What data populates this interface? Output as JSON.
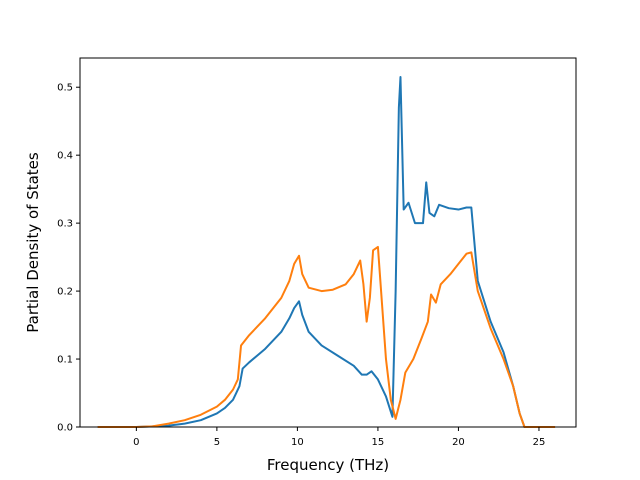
{
  "chart_data": {
    "type": "line",
    "title": "",
    "xlabel": "Frequency (THz)",
    "ylabel": "Partial Density of States",
    "xlim": [
      -3.5,
      27.3
    ],
    "ylim": [
      0.0,
      0.543
    ],
    "xticks": [
      0,
      5,
      10,
      15,
      20,
      25
    ],
    "yticks": [
      0.0,
      0.1,
      0.2,
      0.3,
      0.4,
      0.5
    ],
    "xtick_labels": [
      "0",
      "5",
      "10",
      "15",
      "20",
      "25"
    ],
    "ytick_labels": [
      "0.0",
      "0.1",
      "0.2",
      "0.3",
      "0.4",
      "0.5"
    ],
    "grid": false,
    "legend": "none",
    "series": [
      {
        "color": "#1f77b4",
        "points": [
          [
            -2.4,
            0.0
          ],
          [
            0.0,
            0.0
          ],
          [
            1.0,
            0.001
          ],
          [
            2.0,
            0.002
          ],
          [
            3.0,
            0.005
          ],
          [
            4.0,
            0.01
          ],
          [
            5.0,
            0.02
          ],
          [
            5.5,
            0.028
          ],
          [
            6.0,
            0.04
          ],
          [
            6.2,
            0.05
          ],
          [
            6.4,
            0.06
          ],
          [
            6.6,
            0.086
          ],
          [
            7.0,
            0.095
          ],
          [
            8.0,
            0.115
          ],
          [
            9.0,
            0.14
          ],
          [
            9.5,
            0.16
          ],
          [
            9.8,
            0.175
          ],
          [
            10.1,
            0.185
          ],
          [
            10.3,
            0.165
          ],
          [
            10.7,
            0.14
          ],
          [
            11.5,
            0.12
          ],
          [
            12.5,
            0.105
          ],
          [
            13.5,
            0.09
          ],
          [
            14.0,
            0.077
          ],
          [
            14.3,
            0.077
          ],
          [
            14.6,
            0.082
          ],
          [
            15.0,
            0.07
          ],
          [
            15.5,
            0.045
          ],
          [
            15.9,
            0.015
          ],
          [
            16.1,
            0.2
          ],
          [
            16.3,
            0.47
          ],
          [
            16.4,
            0.515
          ],
          [
            16.6,
            0.32
          ],
          [
            16.9,
            0.33
          ],
          [
            17.3,
            0.3
          ],
          [
            17.8,
            0.3
          ],
          [
            18.0,
            0.36
          ],
          [
            18.2,
            0.315
          ],
          [
            18.5,
            0.31
          ],
          [
            18.8,
            0.327
          ],
          [
            19.4,
            0.322
          ],
          [
            20.0,
            0.32
          ],
          [
            20.5,
            0.323
          ],
          [
            20.8,
            0.323
          ],
          [
            21.2,
            0.215
          ],
          [
            22.0,
            0.155
          ],
          [
            22.8,
            0.11
          ],
          [
            23.4,
            0.06
          ],
          [
            23.8,
            0.02
          ],
          [
            24.1,
            0.0
          ],
          [
            26.0,
            0.0
          ]
        ]
      },
      {
        "color": "#ff7f0e",
        "points": [
          [
            -2.4,
            0.0
          ],
          [
            0.0,
            0.0
          ],
          [
            1.0,
            0.001
          ],
          [
            2.0,
            0.005
          ],
          [
            3.0,
            0.01
          ],
          [
            4.0,
            0.018
          ],
          [
            5.0,
            0.03
          ],
          [
            5.5,
            0.04
          ],
          [
            6.0,
            0.055
          ],
          [
            6.3,
            0.07
          ],
          [
            6.5,
            0.12
          ],
          [
            7.0,
            0.135
          ],
          [
            8.0,
            0.16
          ],
          [
            9.0,
            0.19
          ],
          [
            9.5,
            0.215
          ],
          [
            9.8,
            0.24
          ],
          [
            10.1,
            0.252
          ],
          [
            10.3,
            0.225
          ],
          [
            10.7,
            0.205
          ],
          [
            11.5,
            0.2
          ],
          [
            12.2,
            0.202
          ],
          [
            13.0,
            0.21
          ],
          [
            13.5,
            0.225
          ],
          [
            13.9,
            0.245
          ],
          [
            14.1,
            0.21
          ],
          [
            14.3,
            0.155
          ],
          [
            14.5,
            0.19
          ],
          [
            14.7,
            0.26
          ],
          [
            15.0,
            0.265
          ],
          [
            15.5,
            0.1
          ],
          [
            15.8,
            0.04
          ],
          [
            16.1,
            0.012
          ],
          [
            16.4,
            0.04
          ],
          [
            16.7,
            0.08
          ],
          [
            17.2,
            0.1
          ],
          [
            17.7,
            0.13
          ],
          [
            18.1,
            0.155
          ],
          [
            18.3,
            0.195
          ],
          [
            18.6,
            0.183
          ],
          [
            18.9,
            0.21
          ],
          [
            19.5,
            0.225
          ],
          [
            20.0,
            0.24
          ],
          [
            20.5,
            0.255
          ],
          [
            20.8,
            0.257
          ],
          [
            21.2,
            0.2
          ],
          [
            22.0,
            0.145
          ],
          [
            22.8,
            0.1
          ],
          [
            23.4,
            0.06
          ],
          [
            23.8,
            0.02
          ],
          [
            24.1,
            0.0
          ],
          [
            26.0,
            0.0
          ]
        ]
      }
    ]
  }
}
